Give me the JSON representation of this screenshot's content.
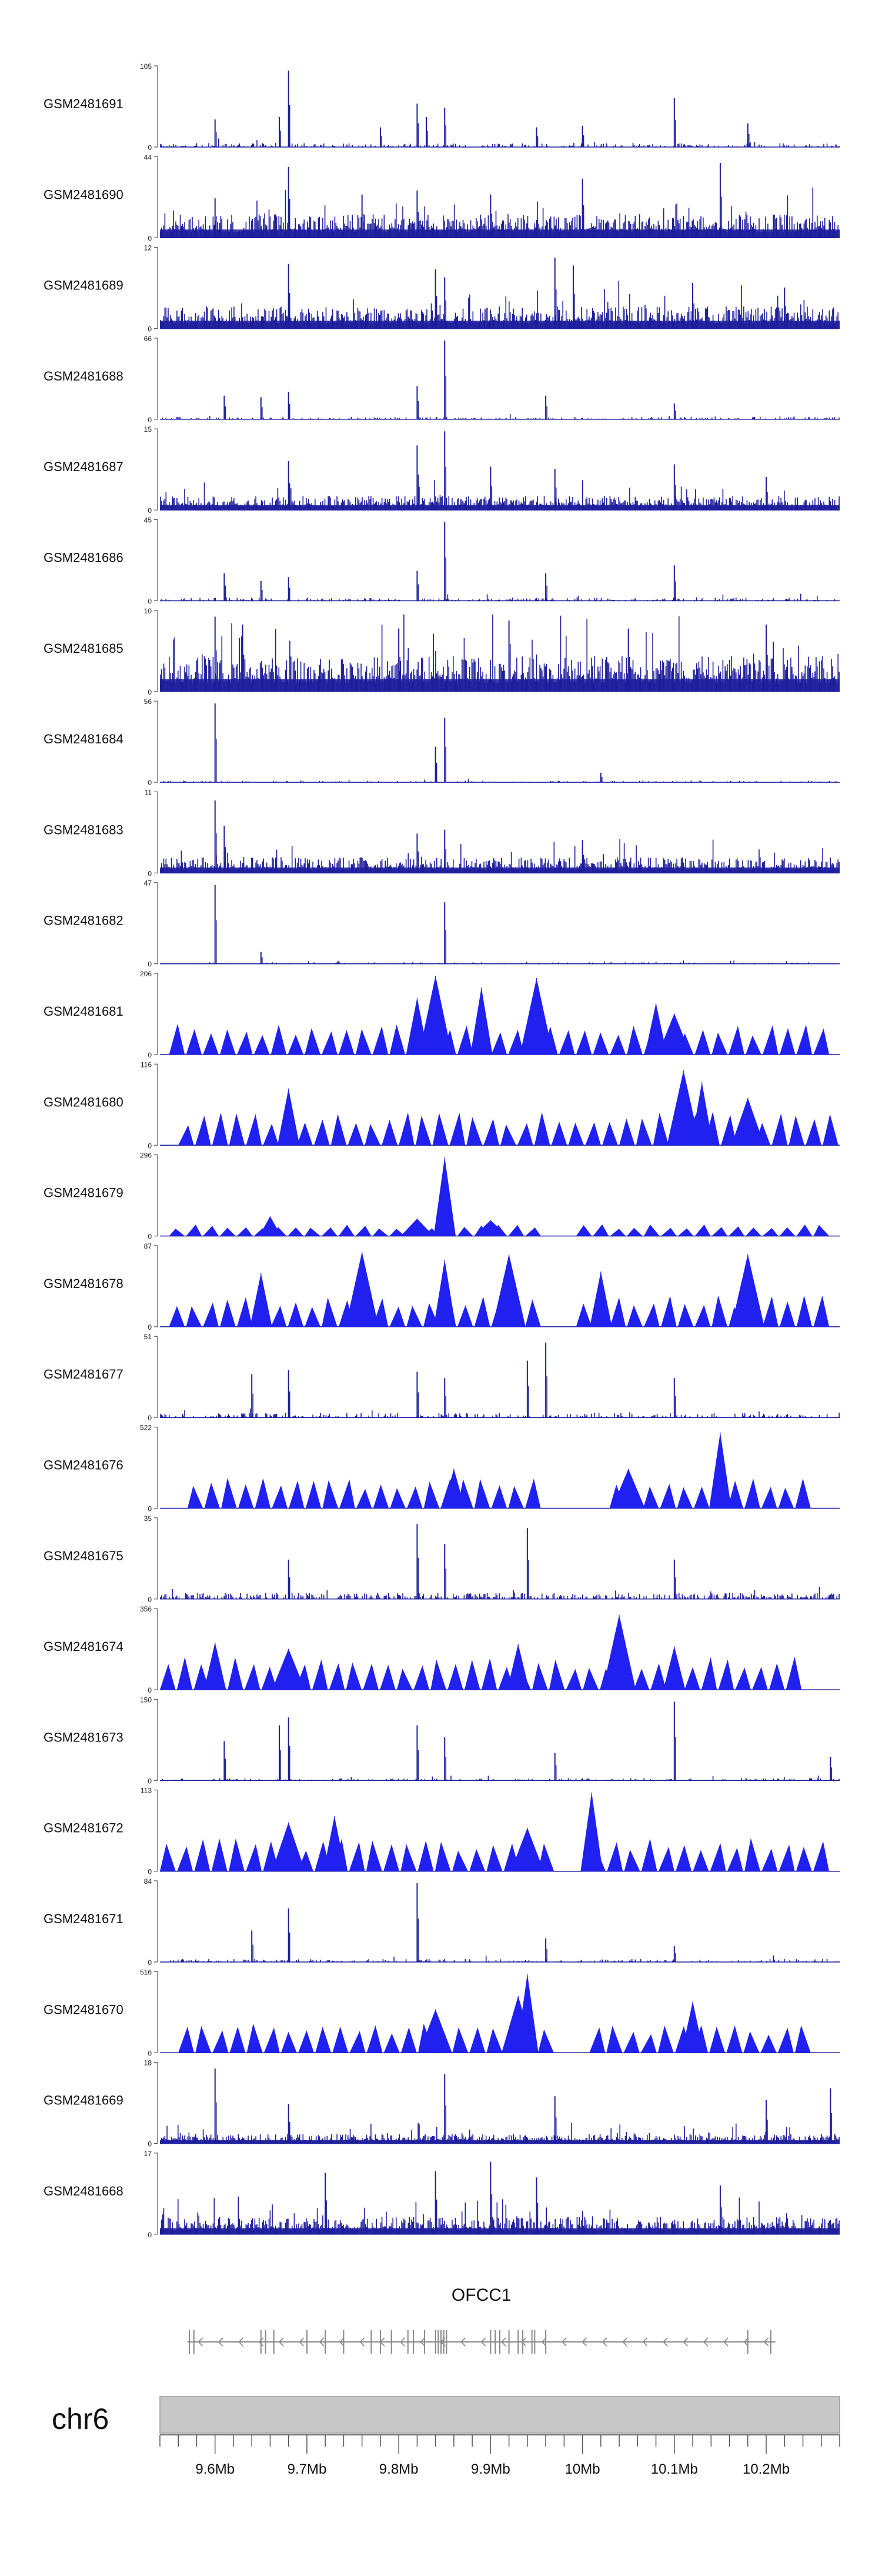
{
  "chart_data": {
    "type": "area",
    "chromosome": "chr6",
    "x_range": [
      9.54,
      10.28
    ],
    "x_unit": "Mb",
    "x_ticks": [
      9.6,
      9.7,
      9.8,
      9.9,
      10.0,
      10.1,
      10.2
    ],
    "x_tick_labels": [
      "9.6Mb",
      "9.7Mb",
      "9.8Mb",
      "9.9Mb",
      "10Mb",
      "10.1Mb",
      "10.2Mb"
    ],
    "gene": {
      "name": "OFCC1",
      "start": 9.57,
      "end": 10.21,
      "strand": "-"
    },
    "colors": {
      "dense": "#1c1c9c",
      "area": "#2020f0",
      "axis": "#555555",
      "gene": "#888888",
      "ideogram": "#c8c8c8"
    },
    "tracks": [
      {
        "name": "GSM2481691",
        "ymin": 0,
        "ymax": 105,
        "style": "peaks",
        "noise": 0.05,
        "density": 0.35,
        "peaks": [
          [
            9.6,
            0.35
          ],
          [
            9.67,
            0.38
          ],
          [
            9.68,
            0.97
          ],
          [
            9.78,
            0.25
          ],
          [
            9.82,
            0.55
          ],
          [
            9.83,
            0.38
          ],
          [
            9.85,
            0.5
          ],
          [
            9.95,
            0.25
          ],
          [
            10.0,
            0.27
          ],
          [
            10.1,
            0.62
          ],
          [
            10.18,
            0.3
          ]
        ]
      },
      {
        "name": "GSM2481690",
        "ymin": 0,
        "ymax": 44,
        "style": "dense",
        "noise": 0.3,
        "density": 1.0,
        "peaks": [
          [
            9.6,
            0.5
          ],
          [
            9.68,
            0.9
          ],
          [
            9.76,
            0.55
          ],
          [
            9.82,
            0.6
          ],
          [
            9.9,
            0.55
          ],
          [
            10.0,
            0.75
          ],
          [
            10.15,
            0.95
          ]
        ]
      },
      {
        "name": "GSM2481689",
        "ymin": 0,
        "ymax": 12,
        "style": "dense",
        "noise": 0.28,
        "density": 1.0,
        "peaks": [
          [
            9.68,
            0.82
          ],
          [
            9.84,
            0.75
          ],
          [
            9.85,
            0.65
          ],
          [
            9.97,
            0.9
          ],
          [
            9.99,
            0.8
          ],
          [
            10.12,
            0.58
          ],
          [
            10.22,
            0.52
          ]
        ]
      },
      {
        "name": "GSM2481688",
        "ymin": 0,
        "ymax": 66,
        "style": "peaks",
        "noise": 0.03,
        "density": 0.3,
        "peaks": [
          [
            9.61,
            0.3
          ],
          [
            9.65,
            0.28
          ],
          [
            9.68,
            0.35
          ],
          [
            9.82,
            0.42
          ],
          [
            9.85,
            1.0
          ],
          [
            9.96,
            0.3
          ],
          [
            10.1,
            0.2
          ]
        ]
      },
      {
        "name": "GSM2481687",
        "ymin": 0,
        "ymax": 15,
        "style": "dense",
        "noise": 0.18,
        "density": 1.0,
        "peaks": [
          [
            9.68,
            0.62
          ],
          [
            9.82,
            0.82
          ],
          [
            9.85,
            1.0
          ],
          [
            9.9,
            0.55
          ],
          [
            9.97,
            0.52
          ],
          [
            10.1,
            0.58
          ],
          [
            10.2,
            0.42
          ]
        ]
      },
      {
        "name": "GSM2481686",
        "ymin": 0,
        "ymax": 45,
        "style": "peaks",
        "noise": 0.04,
        "density": 0.3,
        "peaks": [
          [
            9.61,
            0.35
          ],
          [
            9.65,
            0.25
          ],
          [
            9.68,
            0.3
          ],
          [
            9.82,
            0.38
          ],
          [
            9.85,
            1.0
          ],
          [
            9.96,
            0.35
          ],
          [
            10.1,
            0.45
          ]
        ]
      },
      {
        "name": "GSM2481685",
        "ymin": 0,
        "ymax": 10,
        "style": "dense",
        "noise": 0.45,
        "density": 1.0,
        "peaks": [
          [
            9.6,
            0.95
          ],
          [
            9.63,
            0.85
          ],
          [
            9.8,
            0.8
          ],
          [
            9.92,
            0.9
          ],
          [
            10.05,
            0.8
          ],
          [
            10.2,
            0.85
          ]
        ]
      },
      {
        "name": "GSM2481684",
        "ymin": 0,
        "ymax": 56,
        "style": "peaks",
        "noise": 0.02,
        "density": 0.25,
        "peaks": [
          [
            9.6,
            1.0
          ],
          [
            9.84,
            0.45
          ],
          [
            9.85,
            0.82
          ],
          [
            10.02,
            0.12
          ]
        ]
      },
      {
        "name": "GSM2481683",
        "ymin": 0,
        "ymax": 11,
        "style": "dense",
        "noise": 0.2,
        "density": 1.0,
        "peaks": [
          [
            9.6,
            0.92
          ],
          [
            9.61,
            0.6
          ],
          [
            9.82,
            0.5
          ],
          [
            9.85,
            0.55
          ],
          [
            10.0,
            0.42
          ]
        ]
      },
      {
        "name": "GSM2481682",
        "ymin": 0,
        "ymax": 47,
        "style": "peaks",
        "noise": 0.02,
        "density": 0.22,
        "peaks": [
          [
            9.6,
            1.0
          ],
          [
            9.65,
            0.15
          ],
          [
            9.85,
            0.78
          ]
        ]
      },
      {
        "name": "GSM2481681",
        "ymin": 0,
        "ymax": 206,
        "style": "tri",
        "triH": 0.32,
        "tri_range": [
          9.55,
          10.27
        ],
        "spikes": [
          [
            9.82,
            0.72
          ],
          [
            9.84,
            1.0
          ],
          [
            9.89,
            0.85
          ],
          [
            9.95,
            0.97
          ],
          [
            10.08,
            0.65
          ],
          [
            10.1,
            0.52
          ]
        ],
        "gaps": []
      },
      {
        "name": "GSM2481680",
        "ymin": 0,
        "ymax": 116,
        "style": "tri",
        "triH": 0.34,
        "tri_range": [
          9.56,
          10.28
        ],
        "spikes": [
          [
            9.68,
            0.72
          ],
          [
            10.11,
            0.95
          ],
          [
            10.13,
            0.8
          ],
          [
            10.18,
            0.6
          ]
        ],
        "gaps": []
      },
      {
        "name": "GSM2481679",
        "ymin": 0,
        "ymax": 296,
        "style": "tri",
        "triH": 0.12,
        "tri_range": [
          9.55,
          10.27
        ],
        "spikes": [
          [
            9.85,
            1.0
          ],
          [
            9.9,
            0.2
          ],
          [
            9.66,
            0.25
          ],
          [
            9.82,
            0.22
          ]
        ],
        "gaps": [
          [
            9.97,
            9.99
          ]
        ]
      },
      {
        "name": "GSM2481678",
        "ymin": 0,
        "ymax": 87,
        "style": "tri",
        "triH": 0.32,
        "tri_range": [
          9.55,
          10.27
        ],
        "spikes": [
          [
            9.65,
            0.68
          ],
          [
            9.76,
            0.95
          ],
          [
            9.85,
            0.85
          ],
          [
            9.92,
            0.92
          ],
          [
            10.02,
            0.7
          ],
          [
            10.18,
            0.92
          ]
        ],
        "gaps": [
          [
            9.97,
            9.99
          ]
        ]
      },
      {
        "name": "GSM2481677",
        "ymin": 0,
        "ymax": 51,
        "style": "peaks",
        "noise": 0.06,
        "density": 0.3,
        "peaks": [
          [
            9.64,
            0.55
          ],
          [
            9.68,
            0.6
          ],
          [
            9.82,
            0.58
          ],
          [
            9.85,
            0.5
          ],
          [
            9.94,
            0.72
          ],
          [
            9.96,
            0.95
          ],
          [
            10.1,
            0.5
          ]
        ]
      },
      {
        "name": "GSM2481676",
        "ymin": 0,
        "ymax": 522,
        "style": "tri",
        "triH": 0.32,
        "tri_range": [
          9.57,
          10.25
        ],
        "spikes": [
          [
            10.15,
            0.96
          ],
          [
            10.05,
            0.5
          ],
          [
            9.86,
            0.5
          ]
        ],
        "gaps": [
          [
            9.97,
            10.02
          ]
        ]
      },
      {
        "name": "GSM2481675",
        "ymin": 0,
        "ymax": 35,
        "style": "peaks",
        "noise": 0.08,
        "density": 0.5,
        "peaks": [
          [
            9.68,
            0.5
          ],
          [
            9.82,
            0.95
          ],
          [
            9.85,
            0.7
          ],
          [
            9.94,
            0.9
          ],
          [
            10.1,
            0.5
          ]
        ]
      },
      {
        "name": "GSM2481674",
        "ymin": 0,
        "ymax": 356,
        "style": "tri",
        "triH": 0.34,
        "tri_range": [
          9.54,
          10.24
        ],
        "spikes": [
          [
            9.6,
            0.6
          ],
          [
            9.68,
            0.52
          ],
          [
            9.93,
            0.58
          ],
          [
            10.04,
            0.95
          ],
          [
            10.1,
            0.55
          ]
        ],
        "gaps": []
      },
      {
        "name": "GSM2481673",
        "ymin": 0,
        "ymax": 150,
        "style": "peaks",
        "noise": 0.03,
        "density": 0.3,
        "peaks": [
          [
            9.61,
            0.5
          ],
          [
            9.67,
            0.7
          ],
          [
            9.68,
            0.8
          ],
          [
            9.82,
            0.7
          ],
          [
            9.85,
            0.55
          ],
          [
            9.97,
            0.35
          ],
          [
            10.1,
            1.0
          ],
          [
            10.27,
            0.3
          ]
        ]
      },
      {
        "name": "GSM2481672",
        "ymin": 0,
        "ymax": 113,
        "style": "tri",
        "triH": 0.34,
        "tri_range": [
          9.54,
          10.27
        ],
        "spikes": [
          [
            10.01,
            1.0
          ],
          [
            9.68,
            0.62
          ],
          [
            9.73,
            0.7
          ],
          [
            9.94,
            0.55
          ]
        ],
        "gaps": [
          [
            9.98,
            10.0
          ]
        ]
      },
      {
        "name": "GSM2481671",
        "ymin": 0,
        "ymax": 84,
        "style": "peaks",
        "noise": 0.04,
        "density": 0.3,
        "peaks": [
          [
            9.64,
            0.4
          ],
          [
            9.68,
            0.68
          ],
          [
            9.82,
            1.0
          ],
          [
            9.96,
            0.3
          ],
          [
            10.1,
            0.2
          ]
        ]
      },
      {
        "name": "GSM2481670",
        "ymin": 0,
        "ymax": 516,
        "style": "tri",
        "triH": 0.3,
        "tri_range": [
          9.56,
          10.25
        ],
        "spikes": [
          [
            9.94,
            1.0
          ],
          [
            9.93,
            0.72
          ],
          [
            10.12,
            0.65
          ],
          [
            9.84,
            0.55
          ]
        ],
        "gaps": [
          [
            9.98,
            10.0
          ]
        ]
      },
      {
        "name": "GSM2481669",
        "ymin": 0,
        "ymax": 18,
        "style": "dense",
        "noise": 0.12,
        "density": 1.0,
        "peaks": [
          [
            9.6,
            0.95
          ],
          [
            9.68,
            0.5
          ],
          [
            9.85,
            0.88
          ],
          [
            9.97,
            0.6
          ],
          [
            10.2,
            0.55
          ],
          [
            10.27,
            0.7
          ]
        ]
      },
      {
        "name": "GSM2481668",
        "ymin": 0,
        "ymax": 17,
        "style": "dense",
        "noise": 0.22,
        "density": 1.0,
        "peaks": [
          [
            9.72,
            0.78
          ],
          [
            9.84,
            0.8
          ],
          [
            9.9,
            0.92
          ],
          [
            9.95,
            0.72
          ],
          [
            10.15,
            0.62
          ]
        ]
      }
    ]
  }
}
